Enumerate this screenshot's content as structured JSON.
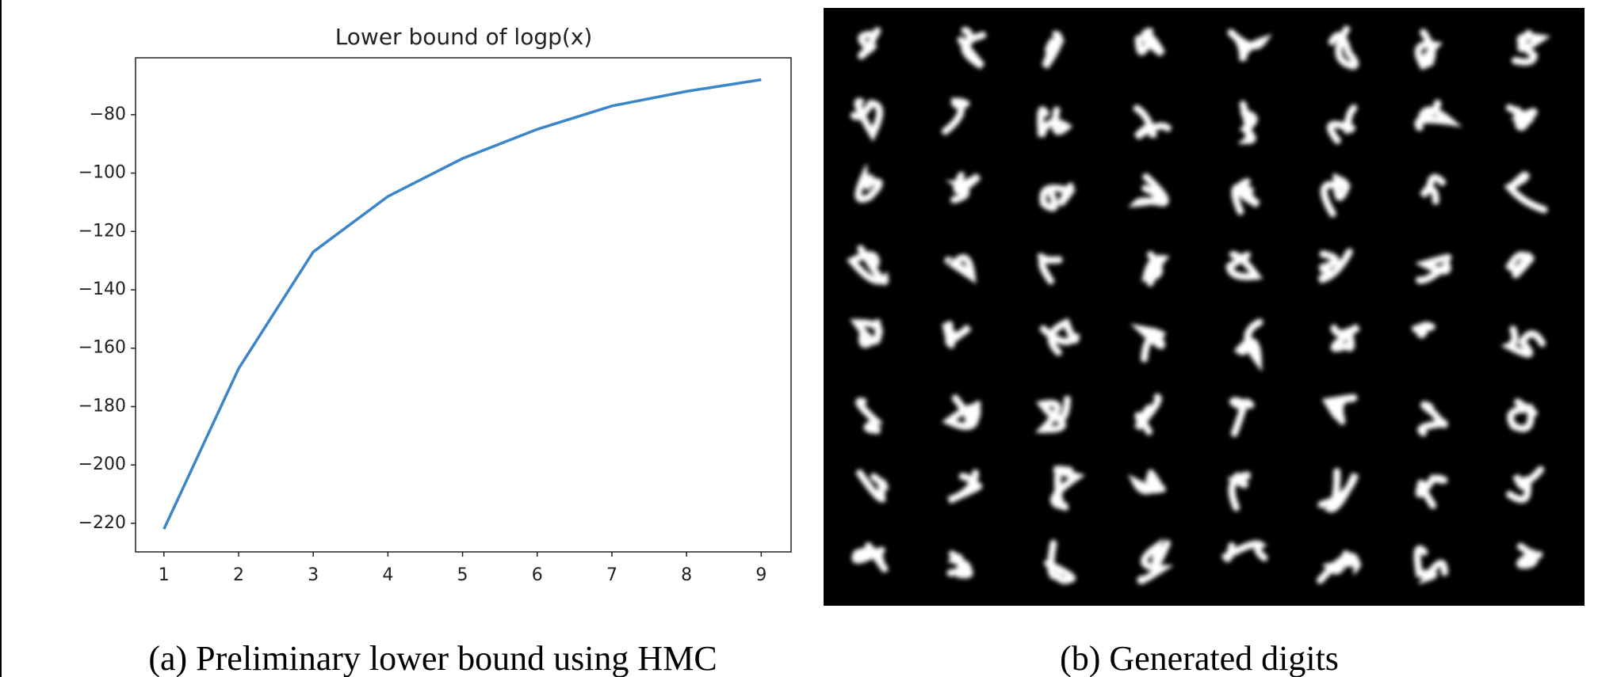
{
  "chart_data": {
    "type": "line",
    "title": "Lower bound of logp(x)",
    "x": [
      1,
      2,
      3,
      4,
      5,
      6,
      7,
      8,
      9
    ],
    "series": [
      {
        "color": "#3a86c8",
        "values": [
          -222,
          -167,
          -127,
          -108,
          -95,
          -85,
          -77,
          -72,
          -68
        ]
      }
    ],
    "xlim": [
      0.62,
      9.4
    ],
    "ylim": [
      -229.8,
      -60.5
    ],
    "xticks": [
      1,
      2,
      3,
      4,
      5,
      6,
      7,
      8,
      9
    ],
    "yticks": [
      {
        "value": -80,
        "label": "−80"
      },
      {
        "value": -100,
        "label": "−100"
      },
      {
        "value": -120,
        "label": "−120"
      },
      {
        "value": -140,
        "label": "−140"
      },
      {
        "value": -160,
        "label": "−160"
      },
      {
        "value": -180,
        "label": "−180"
      },
      {
        "value": -200,
        "label": "−200"
      },
      {
        "value": -220,
        "label": "−220"
      }
    ],
    "grid": false
  },
  "captions": [
    "(a)  Preliminary lower bound using HMC",
    "(b)  Generated digits"
  ]
}
